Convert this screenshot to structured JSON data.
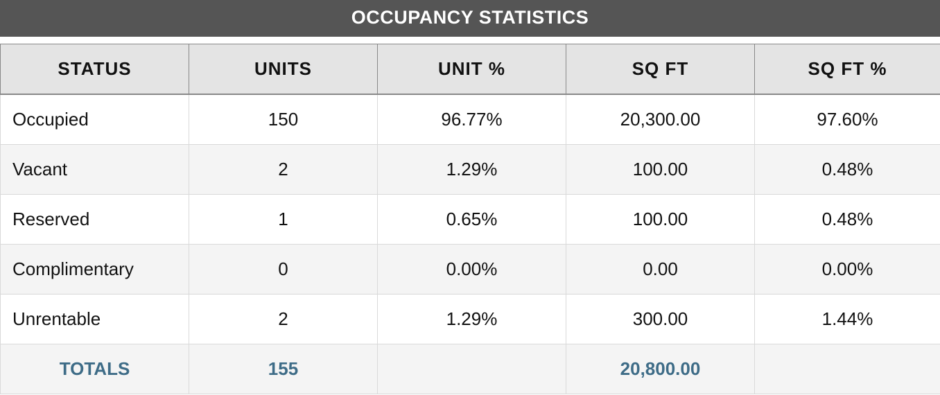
{
  "title": "OCCUPANCY STATISTICS",
  "columns": [
    "STATUS",
    "UNITS",
    "UNIT %",
    "SQ FT",
    "SQ FT %"
  ],
  "rows": [
    {
      "status": "Occupied",
      "units": "150",
      "unit_pct": "96.77%",
      "sqft": "20,300.00",
      "sqft_pct": "97.60%"
    },
    {
      "status": "Vacant",
      "units": "2",
      "unit_pct": "1.29%",
      "sqft": "100.00",
      "sqft_pct": "0.48%"
    },
    {
      "status": "Reserved",
      "units": "1",
      "unit_pct": "0.65%",
      "sqft": "100.00",
      "sqft_pct": "0.48%"
    },
    {
      "status": "Complimentary",
      "units": "0",
      "unit_pct": "0.00%",
      "sqft": "0.00",
      "sqft_pct": "0.00%"
    },
    {
      "status": "Unrentable",
      "units": "2",
      "unit_pct": "1.29%",
      "sqft": "300.00",
      "sqft_pct": "1.44%"
    }
  ],
  "totals": {
    "label": "TOTALS",
    "units": "155",
    "unit_pct": "",
    "sqft": "20,800.00",
    "sqft_pct": ""
  },
  "colors": {
    "title_bg": "#555555",
    "header_bg": "#e4e4e4",
    "totals_text": "#3e6c87",
    "stripe": "#f4f4f4"
  }
}
